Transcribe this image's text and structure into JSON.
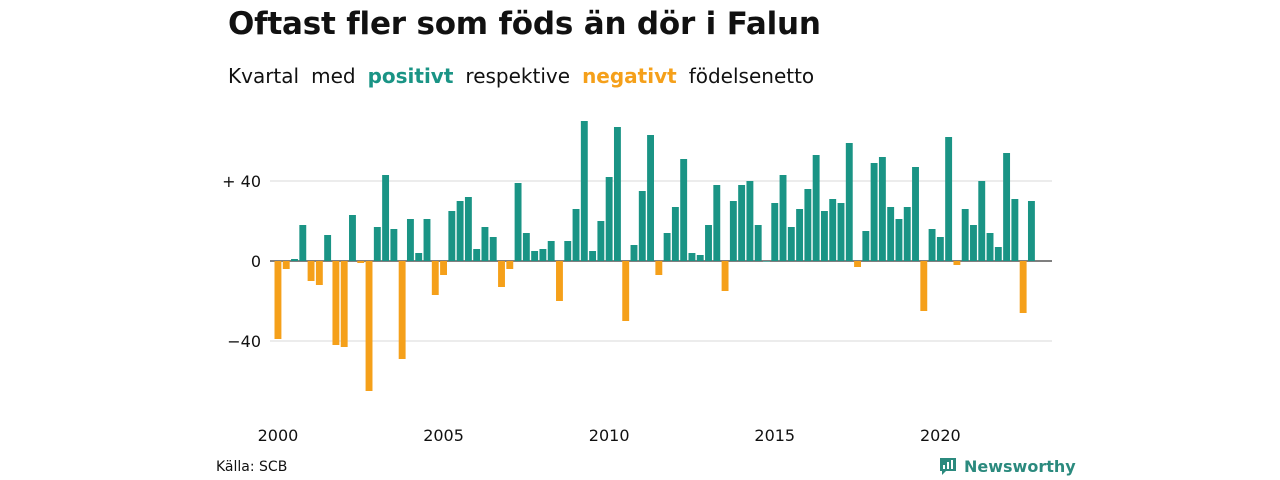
{
  "title": "Oftast fler som föds än dör i Falun",
  "subtitle": {
    "part1": "Kvartal",
    "part2": "med",
    "positive_word": "positivt",
    "part3": "respektive",
    "negative_word": "negativt",
    "part4": "födelsenetto"
  },
  "source": "Källa: SCB",
  "brand": "Newsworthy",
  "colors": {
    "positive": "#1a9485",
    "negative": "#f5a01a",
    "grid": "#d9d9d9",
    "brand": "#2b8a7e"
  },
  "chart_data": {
    "type": "bar",
    "x_start": "2000 Q1",
    "values": [
      -39,
      -4,
      1,
      18,
      -10,
      -12,
      13,
      -42,
      -43,
      23,
      -1,
      -65,
      17,
      43,
      16,
      -49,
      21,
      4,
      21,
      -17,
      -7,
      25,
      30,
      32,
      6,
      17,
      12,
      -13,
      -4,
      39,
      14,
      5,
      6,
      10,
      -20,
      10,
      26,
      70,
      5,
      20,
      42,
      67,
      -30,
      8,
      35,
      63,
      -7,
      14,
      27,
      51,
      4,
      3,
      18,
      38,
      -15,
      30,
      38,
      40,
      18,
      0,
      29,
      43,
      17,
      26,
      36,
      53,
      25,
      31,
      29,
      59,
      -3,
      15,
      49,
      52,
      27,
      21,
      27,
      47,
      -25,
      16,
      12,
      62,
      -2,
      26,
      18,
      40,
      14,
      7,
      54,
      31,
      -26,
      30
    ],
    "xticks": [
      "2000",
      "2005",
      "2010",
      "2015",
      "2020"
    ],
    "yticks": [
      "+ 40",
      "0",
      "−40"
    ],
    "ytick_values": [
      40,
      0,
      -40
    ],
    "ylim": [
      -70,
      72
    ],
    "grid": true
  }
}
